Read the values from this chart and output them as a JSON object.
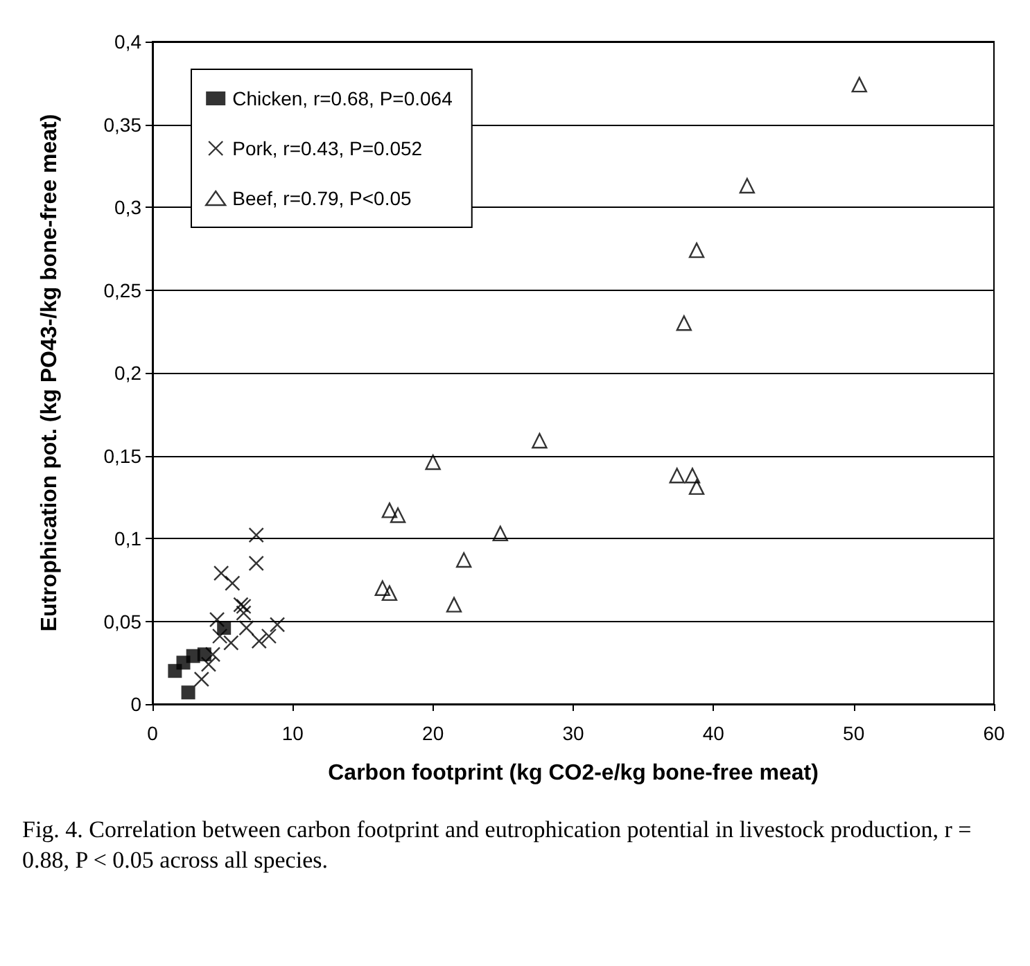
{
  "chart_data": {
    "type": "scatter",
    "xlabel": "Carbon footprint (kg CO2-e/kg bone-free meat)",
    "ylabel": "Eutrophication pot. (kg PO43-/kg bone-free meat)",
    "xlim": [
      0,
      60
    ],
    "xticks": [
      0,
      10,
      20,
      30,
      40,
      50,
      60
    ],
    "ylim": [
      0,
      0.4
    ],
    "yticks": [
      {
        "value": 0,
        "label": "0"
      },
      {
        "value": 0.05,
        "label": "0,05"
      },
      {
        "value": 0.1,
        "label": "0,1"
      },
      {
        "value": 0.15,
        "label": "0,15"
      },
      {
        "value": 0.2,
        "label": "0,2"
      },
      {
        "value": 0.25,
        "label": "0,25"
      },
      {
        "value": 0.3,
        "label": "0,3"
      },
      {
        "value": 0.35,
        "label": "0,35"
      },
      {
        "value": 0.4,
        "label": "0,4"
      }
    ],
    "grid": "y",
    "legend": "top left",
    "annotations": [
      "Fig. 4.  Correlation between carbon footprint and eutrophication potential in livestock production, r = 0.88, P < 0.05 across all species."
    ],
    "series": [
      {
        "name": "Chicken, r=0.68, P=0.064",
        "color": "#000000",
        "marker": "square",
        "x": [
          5.1,
          3.7,
          2.9,
          2.2,
          1.75,
          1.6,
          2.55
        ],
        "values": [
          0.046,
          0.03,
          0.029,
          0.025,
          null,
          0.02,
          0.007
        ]
      },
      {
        "name": "Pork, r=0.43, P=0.052",
        "color": "#000000",
        "marker": "cross",
        "x": [
          7.4,
          7.4,
          4.9,
          5.7,
          6.3,
          6.5,
          6.5,
          4.6,
          6.7,
          8.9,
          8.3,
          7.6,
          5.6,
          4.8,
          4.3,
          4.0,
          3.5
        ],
        "values": [
          0.102,
          0.085,
          0.079,
          0.073,
          0.06,
          0.059,
          0.055,
          0.051,
          0.046,
          0.048,
          0.041,
          0.038,
          0.037,
          0.041,
          0.03,
          0.024,
          0.015
        ]
      },
      {
        "name": "Beef, r=0.79, P<0.05",
        "color": "#000000",
        "marker": "triangle",
        "x": [
          50.4,
          42.4,
          38.8,
          37.9,
          27.6,
          20.0,
          16.9,
          17.5,
          37.4,
          38.5,
          38.8,
          24.8,
          22.2,
          16.4,
          16.9,
          21.5
        ],
        "values": [
          0.374,
          0.313,
          0.274,
          0.23,
          0.159,
          0.146,
          0.117,
          0.114,
          0.138,
          0.138,
          0.131,
          0.103,
          0.087,
          0.07,
          0.067,
          0.06
        ]
      }
    ]
  }
}
